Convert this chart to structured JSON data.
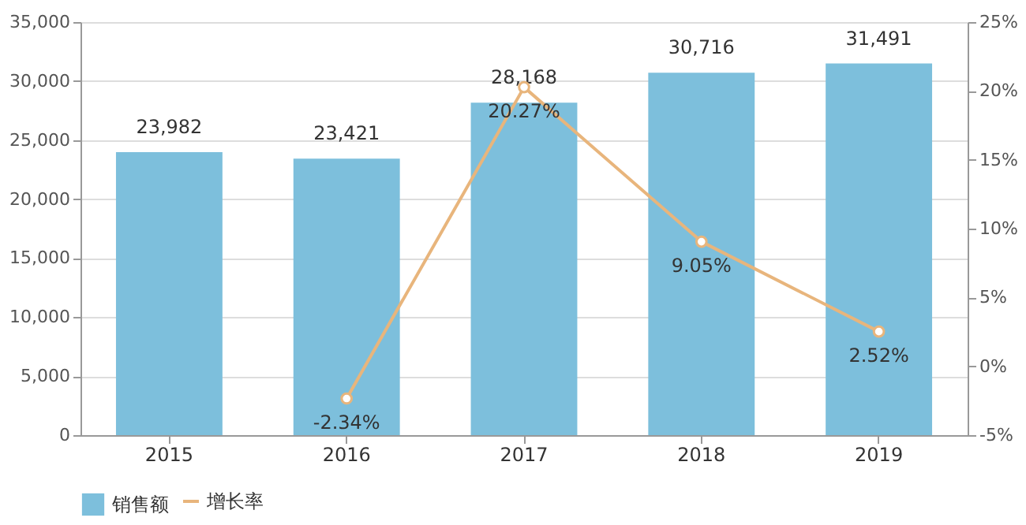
{
  "chart_data": {
    "type": "bar",
    "categories": [
      "2015",
      "2016",
      "2017",
      "2018",
      "2019"
    ],
    "series": [
      {
        "name": "销售额",
        "color": "#7dbfdc",
        "values": [
          23982,
          23421,
          28168,
          30716,
          31491
        ],
        "value_labels": [
          "23,982",
          "23,421",
          "28,168",
          "30,716",
          "31,491"
        ]
      },
      {
        "name": "增长率",
        "type": "line",
        "axis": "y2",
        "color": "#e8b57c",
        "marker": "circle",
        "values": [
          null,
          -2.34,
          20.27,
          9.05,
          2.52
        ],
        "value_labels": [
          null,
          "-2.34%",
          "20.27%",
          "9.05%",
          "2.52%"
        ]
      }
    ],
    "ylim": [
      0,
      35000
    ],
    "yticks": [
      {
        "value": 0,
        "label": "0"
      },
      {
        "value": 5000,
        "label": "5,000"
      },
      {
        "value": 10000,
        "label": "10,000"
      },
      {
        "value": 15000,
        "label": "15,000"
      },
      {
        "value": 20000,
        "label": "20,000"
      },
      {
        "value": 25000,
        "label": "25,000"
      },
      {
        "value": 30000,
        "label": "30,000"
      },
      {
        "value": 35000,
        "label": "35,000"
      }
    ],
    "y2lim": [
      -5,
      25
    ],
    "y2ticks": [
      {
        "value": -5,
        "label": "-5%"
      },
      {
        "value": 0,
        "label": "0%"
      },
      {
        "value": 5,
        "label": "5%"
      },
      {
        "value": 10,
        "label": "10%"
      },
      {
        "value": 15,
        "label": "15%"
      },
      {
        "value": 20,
        "label": "20%"
      },
      {
        "value": 25,
        "label": "25%"
      }
    ],
    "grid": "y",
    "legend": "bottom"
  }
}
